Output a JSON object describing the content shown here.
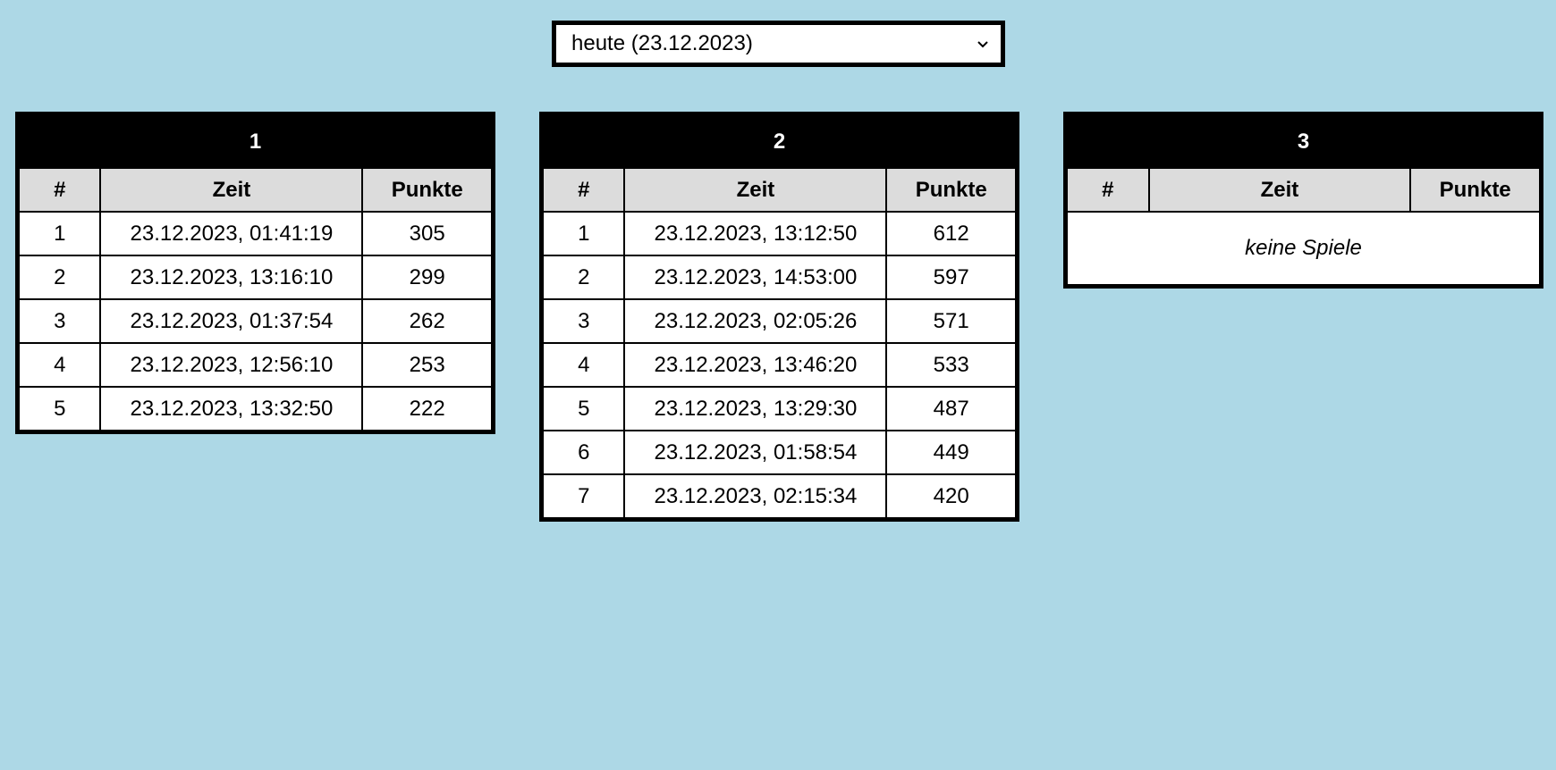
{
  "date_select": {
    "selected": "heute (23.12.2023)"
  },
  "columns": {
    "num": "#",
    "time": "Zeit",
    "points": "Punkte"
  },
  "tables": [
    {
      "title": "1",
      "rows": [
        {
          "num": "1",
          "time": "23.12.2023, 01:41:19",
          "points": "305"
        },
        {
          "num": "2",
          "time": "23.12.2023, 13:16:10",
          "points": "299"
        },
        {
          "num": "3",
          "time": "23.12.2023, 01:37:54",
          "points": "262"
        },
        {
          "num": "4",
          "time": "23.12.2023, 12:56:10",
          "points": "253"
        },
        {
          "num": "5",
          "time": "23.12.2023, 13:32:50",
          "points": "222"
        }
      ]
    },
    {
      "title": "2",
      "rows": [
        {
          "num": "1",
          "time": "23.12.2023, 13:12:50",
          "points": "612"
        },
        {
          "num": "2",
          "time": "23.12.2023, 14:53:00",
          "points": "597"
        },
        {
          "num": "3",
          "time": "23.12.2023, 02:05:26",
          "points": "571"
        },
        {
          "num": "4",
          "time": "23.12.2023, 13:46:20",
          "points": "533"
        },
        {
          "num": "5",
          "time": "23.12.2023, 13:29:30",
          "points": "487"
        },
        {
          "num": "6",
          "time": "23.12.2023, 01:58:54",
          "points": "449"
        },
        {
          "num": "7",
          "time": "23.12.2023, 02:15:34",
          "points": "420"
        }
      ]
    },
    {
      "title": "3",
      "rows": [],
      "empty_message": "keine Spiele"
    }
  ]
}
